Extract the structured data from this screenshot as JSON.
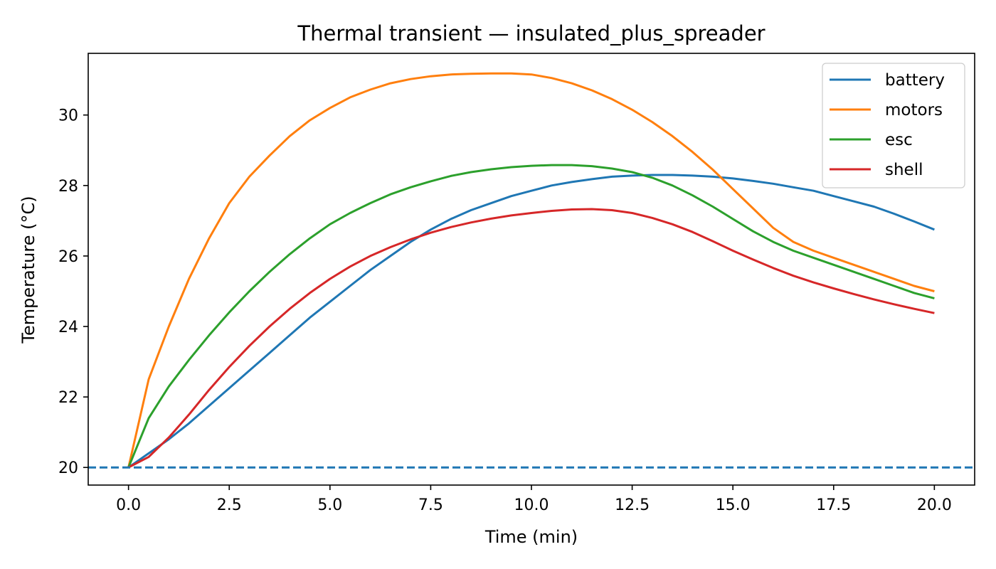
{
  "chart_data": {
    "type": "line",
    "title": "Thermal transient — insulated_plus_spreader",
    "xlabel": "Time (min)",
    "ylabel": "Temperature (°C)",
    "xlim": [
      -1.0,
      21.0
    ],
    "ylim": [
      19.5,
      31.75
    ],
    "xticks": [
      0.0,
      2.5,
      5.0,
      7.5,
      10.0,
      12.5,
      15.0,
      17.5,
      20.0
    ],
    "xtick_labels": [
      "0.0",
      "2.5",
      "5.0",
      "7.5",
      "10.0",
      "12.5",
      "15.0",
      "17.5",
      "20.0"
    ],
    "yticks": [
      20,
      22,
      24,
      26,
      28,
      30
    ],
    "ytick_labels": [
      "20",
      "22",
      "24",
      "26",
      "28",
      "30"
    ],
    "grid": false,
    "legend_position": "top-right",
    "x": [
      0,
      0.5,
      1,
      1.5,
      2,
      2.5,
      3,
      3.5,
      4,
      4.5,
      5,
      5.5,
      6,
      6.5,
      7,
      7.5,
      8,
      8.5,
      9,
      9.5,
      10,
      10.5,
      11,
      11.5,
      12,
      12.5,
      13,
      13.5,
      14,
      14.5,
      15,
      15.5,
      16,
      16.5,
      17,
      17.5,
      18,
      18.5,
      19,
      19.5,
      20
    ],
    "series": [
      {
        "name": "battery",
        "color": "#1f77b4",
        "values": [
          20.0,
          20.4,
          20.8,
          21.25,
          21.75,
          22.25,
          22.75,
          23.25,
          23.75,
          24.25,
          24.7,
          25.15,
          25.6,
          26.0,
          26.4,
          26.75,
          27.05,
          27.3,
          27.5,
          27.7,
          27.85,
          28.0,
          28.1,
          28.18,
          28.25,
          28.28,
          28.3,
          28.3,
          28.28,
          28.25,
          28.2,
          28.13,
          28.05,
          27.95,
          27.85,
          27.7,
          27.55,
          27.4,
          27.2,
          26.98,
          26.75
        ]
      },
      {
        "name": "motors",
        "color": "#ff7f0e",
        "values": [
          20.0,
          22.5,
          24.0,
          25.35,
          26.5,
          27.5,
          28.25,
          28.85,
          29.4,
          29.85,
          30.2,
          30.5,
          30.72,
          30.9,
          31.02,
          31.1,
          31.15,
          31.17,
          31.18,
          31.18,
          31.15,
          31.05,
          30.9,
          30.7,
          30.45,
          30.15,
          29.8,
          29.4,
          28.95,
          28.45,
          27.9,
          27.35,
          26.8,
          26.4,
          26.15,
          25.95,
          25.75,
          25.55,
          25.35,
          25.15,
          25.0
        ]
      },
      {
        "name": "esc",
        "color": "#2ca02c",
        "values": [
          20.0,
          21.4,
          22.3,
          23.05,
          23.75,
          24.4,
          25.0,
          25.55,
          26.05,
          26.5,
          26.9,
          27.22,
          27.5,
          27.75,
          27.95,
          28.12,
          28.27,
          28.38,
          28.46,
          28.52,
          28.56,
          28.58,
          28.58,
          28.55,
          28.48,
          28.38,
          28.22,
          28.0,
          27.72,
          27.4,
          27.05,
          26.7,
          26.4,
          26.15,
          25.95,
          25.75,
          25.55,
          25.35,
          25.15,
          24.95,
          24.8
        ]
      },
      {
        "name": "shell",
        "color": "#d62728",
        "values": [
          20.0,
          20.3,
          20.85,
          21.5,
          22.2,
          22.85,
          23.45,
          24.0,
          24.5,
          24.95,
          25.35,
          25.7,
          26.0,
          26.25,
          26.47,
          26.66,
          26.82,
          26.95,
          27.06,
          27.15,
          27.22,
          27.28,
          27.32,
          27.33,
          27.3,
          27.22,
          27.08,
          26.9,
          26.68,
          26.42,
          26.15,
          25.9,
          25.66,
          25.44,
          25.25,
          25.08,
          24.92,
          24.77,
          24.63,
          24.5,
          24.38
        ]
      }
    ],
    "reference_lines": [
      {
        "axis": "y",
        "value": 20,
        "style": "dashed",
        "color": "#1f77b4"
      }
    ]
  }
}
